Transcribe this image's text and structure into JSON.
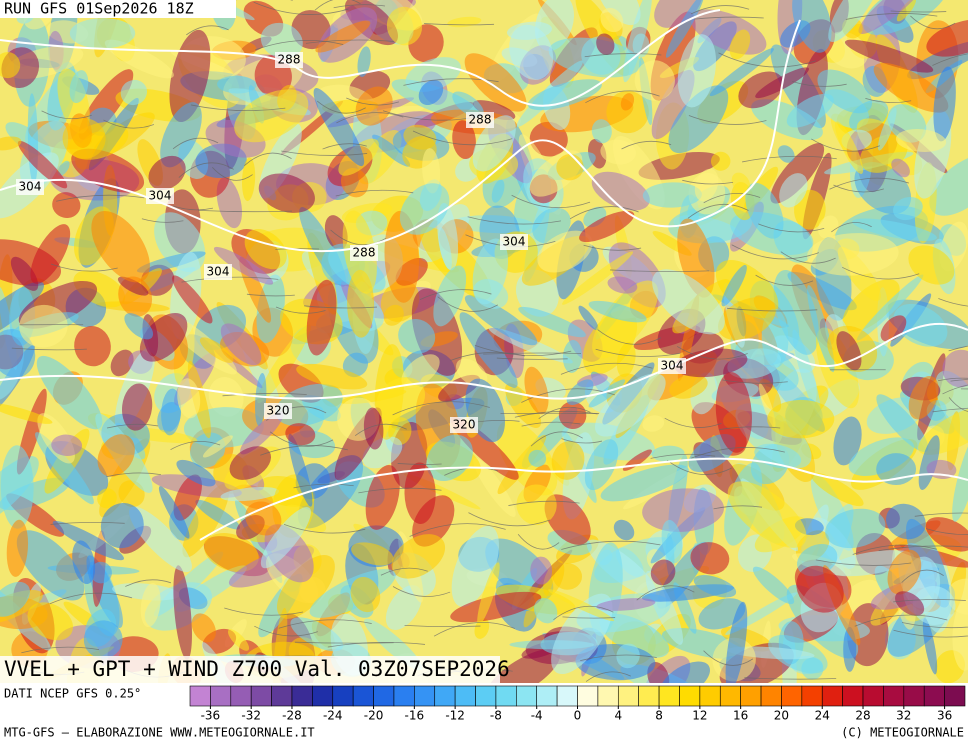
{
  "header": {
    "run": "RUN GFS 01Sep2026 18Z"
  },
  "map": {
    "title": "VVEL + GPT + WIND Z700 Val. 03Z07SEP2026",
    "contour_labels": [
      288,
      288,
      288,
      304,
      304,
      304,
      304,
      304,
      320,
      320
    ]
  },
  "colorbar": {
    "source": "DATI NCEP GFS 0.25°",
    "range": [
      -38,
      38
    ],
    "ticks": [
      -36,
      -32,
      -28,
      -24,
      -20,
      -16,
      -12,
      -8,
      -4,
      0,
      4,
      8,
      12,
      16,
      20,
      24,
      28,
      32,
      36
    ],
    "colors": [
      "#c383d3",
      "#a86fc3",
      "#955db4",
      "#7d4ba5",
      "#5e3a98",
      "#3a2c96",
      "#1f2fa8",
      "#1740c0",
      "#1a55d6",
      "#2068e4",
      "#2a7ff0",
      "#3593f4",
      "#40a8f6",
      "#4dbcf6",
      "#5ccdf4",
      "#70daf2",
      "#8ce5f2",
      "#aeeef6",
      "#d8f8fa",
      "#fffde0",
      "#fff8b0",
      "#fff280",
      "#ffec50",
      "#ffe620",
      "#ffdc00",
      "#ffcc00",
      "#ffb800",
      "#ffa000",
      "#ff8400",
      "#ff6400",
      "#f44000",
      "#e02010",
      "#cc1020",
      "#b80c30",
      "#a80c40",
      "#980c48",
      "#8c0c50",
      "#7c0c50"
    ]
  },
  "footer": {
    "credit": "MTG-GFS — ELABORAZIONE WWW.METEOGIORNALE.IT",
    "copyright": "(C) METEOGIORNALE"
  }
}
